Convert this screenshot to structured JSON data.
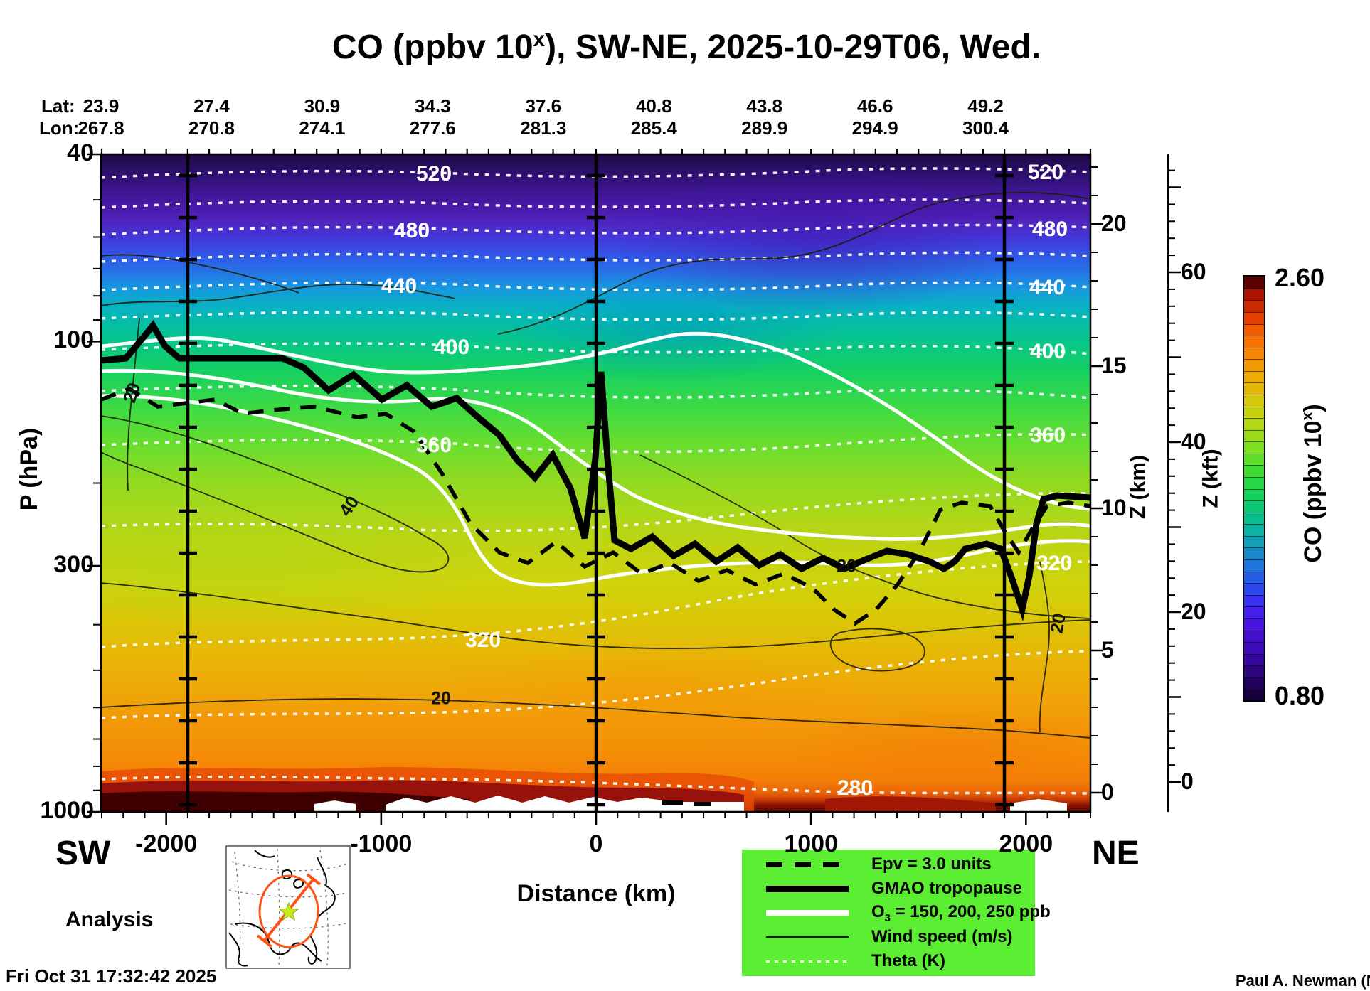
{
  "title": {
    "prefix": "CO (ppbv 10",
    "sup": "x",
    "suffix": "), SW-NE, 2025-10-29T06, Wed."
  },
  "top_axis": {
    "lat_label": "Lat:",
    "lon_label": "Lon:",
    "lat": [
      "23.9",
      "27.4",
      "30.9",
      "34.3",
      "37.6",
      "40.8",
      "43.8",
      "46.6",
      "49.2"
    ],
    "lon": [
      "267.8",
      "270.8",
      "274.1",
      "277.6",
      "281.3",
      "285.4",
      "289.9",
      "294.9",
      "300.4"
    ]
  },
  "axes": {
    "pressure": {
      "label": "P (hPa)",
      "ticks": [
        "40",
        "100",
        "300",
        "1000"
      ]
    },
    "distance": {
      "label": "Distance (km)",
      "ticks": [
        "-2000",
        "-1000",
        "0",
        "1000",
        "2000"
      ]
    },
    "z_km": {
      "label": "Z (km)",
      "ticks": [
        "20",
        "15",
        "10",
        "5",
        "0"
      ]
    },
    "z_kft": {
      "label": "Z (kft)",
      "ticks": [
        "60",
        "40",
        "20",
        "0"
      ]
    }
  },
  "endpoints": {
    "start": "SW",
    "end": "NE"
  },
  "annotations": {
    "analysis": "Analysis",
    "timestamp": "Fri Oct 31 17:32:42 2025",
    "credit": "Paul A. Newman (NASA"
  },
  "colorbar": {
    "max": "2.60",
    "min": "0.80",
    "label_prefix": "CO (ppbv 10",
    "label_sup": "x",
    "label_suffix": ")",
    "palette": [
      "#16003e",
      "#22015e",
      "#2c047e",
      "#34079c",
      "#3c0ab6",
      "#440ecd",
      "#4a14e0",
      "#4420ee",
      "#3832f2",
      "#2c46ee",
      "#245ce6",
      "#1e74da",
      "#188aca",
      "#12a0b8",
      "#0cb2a2",
      "#08be8c",
      "#0ac874",
      "#14d05c",
      "#26d846",
      "#40dc34",
      "#5ee028",
      "#7ee021",
      "#9adc1a",
      "#b2d814",
      "#c6d20e",
      "#d6c80a",
      "#e2b807",
      "#ecab05",
      "#f29a04",
      "#f68603",
      "#f87202",
      "#f25a02",
      "#e44002",
      "#cc2a02",
      "#ac1402",
      "#5a0000"
    ]
  },
  "legend": {
    "items": [
      {
        "label": "Epv = 3.0 units"
      },
      {
        "label": "GMAO tropopause"
      },
      {
        "label_parts": [
          "O",
          "3",
          " = 150, 200, 250 ppb"
        ]
      },
      {
        "label": "Wind speed (m/s)"
      },
      {
        "label": "Theta (K)"
      }
    ]
  },
  "contour_labels": {
    "theta": [
      "520",
      "520",
      "480",
      "480",
      "440",
      "440",
      "400",
      "400",
      "360",
      "360",
      "320",
      "320",
      "280"
    ],
    "wind": [
      "20",
      "40",
      "20",
      "20",
      "20"
    ]
  },
  "chart_data": {
    "type": "heatmap",
    "title": "CO (ppbv 10^x), SW-NE, 2025-10-29T06, Wed.",
    "field": "CO mixing ratio, shown as log10(ppbv), vertical curtain along SW-NE great-circle section",
    "x": {
      "label": "Distance (km)",
      "range": [
        -2300,
        2300
      ],
      "ticks": [
        -2000,
        -1000,
        0,
        1000,
        2000
      ],
      "waypoints": [
        {
          "lat": 23.9,
          "lon": 267.8
        },
        {
          "lat": 27.4,
          "lon": 270.8
        },
        {
          "lat": 30.9,
          "lon": 274.1
        },
        {
          "lat": 34.3,
          "lon": 277.6
        },
        {
          "lat": 37.6,
          "lon": 281.3
        },
        {
          "lat": 40.8,
          "lon": 285.4
        },
        {
          "lat": 43.8,
          "lon": 289.9
        },
        {
          "lat": 46.6,
          "lon": 294.9
        },
        {
          "lat": 49.2,
          "lon": 300.4
        }
      ]
    },
    "y": {
      "label": "P (hPa)",
      "scale": "log",
      "range": [
        40,
        1000
      ],
      "ticks": [
        40,
        100,
        300,
        1000
      ]
    },
    "y2": {
      "label": "Z (km)",
      "ticks": [
        20,
        15,
        10,
        5,
        0
      ]
    },
    "y3": {
      "label": "Z (kft)",
      "ticks": [
        60,
        40,
        20,
        0
      ]
    },
    "colorbar": {
      "label": "CO (ppbv 10^x)",
      "range": [
        0.8,
        2.6
      ]
    },
    "overlays": {
      "theta_K": {
        "style": "white dotted contours",
        "labeled_levels": [
          280,
          320,
          360,
          400,
          440,
          480,
          520
        ]
      },
      "wind_speed_ms": {
        "style": "thin black contours",
        "labeled_levels": [
          20,
          40
        ]
      },
      "o3_ppb": {
        "style": "thick white contours",
        "levels": [
          150,
          200,
          250
        ]
      },
      "epv": {
        "style": "thick black dashed contour",
        "level": "3.0 units"
      },
      "gmao_tropopause": {
        "style": "thick black solid line"
      }
    },
    "legend_position": "bottom-right",
    "reading": "Low CO (~0.8) dark purple in stratosphere at top; high CO (~2.6) dark red near surface at bottom; tropopause descends from ~120 hPa at SW to ~250 hPa, with deep folds near 0 km and +1900 km."
  }
}
